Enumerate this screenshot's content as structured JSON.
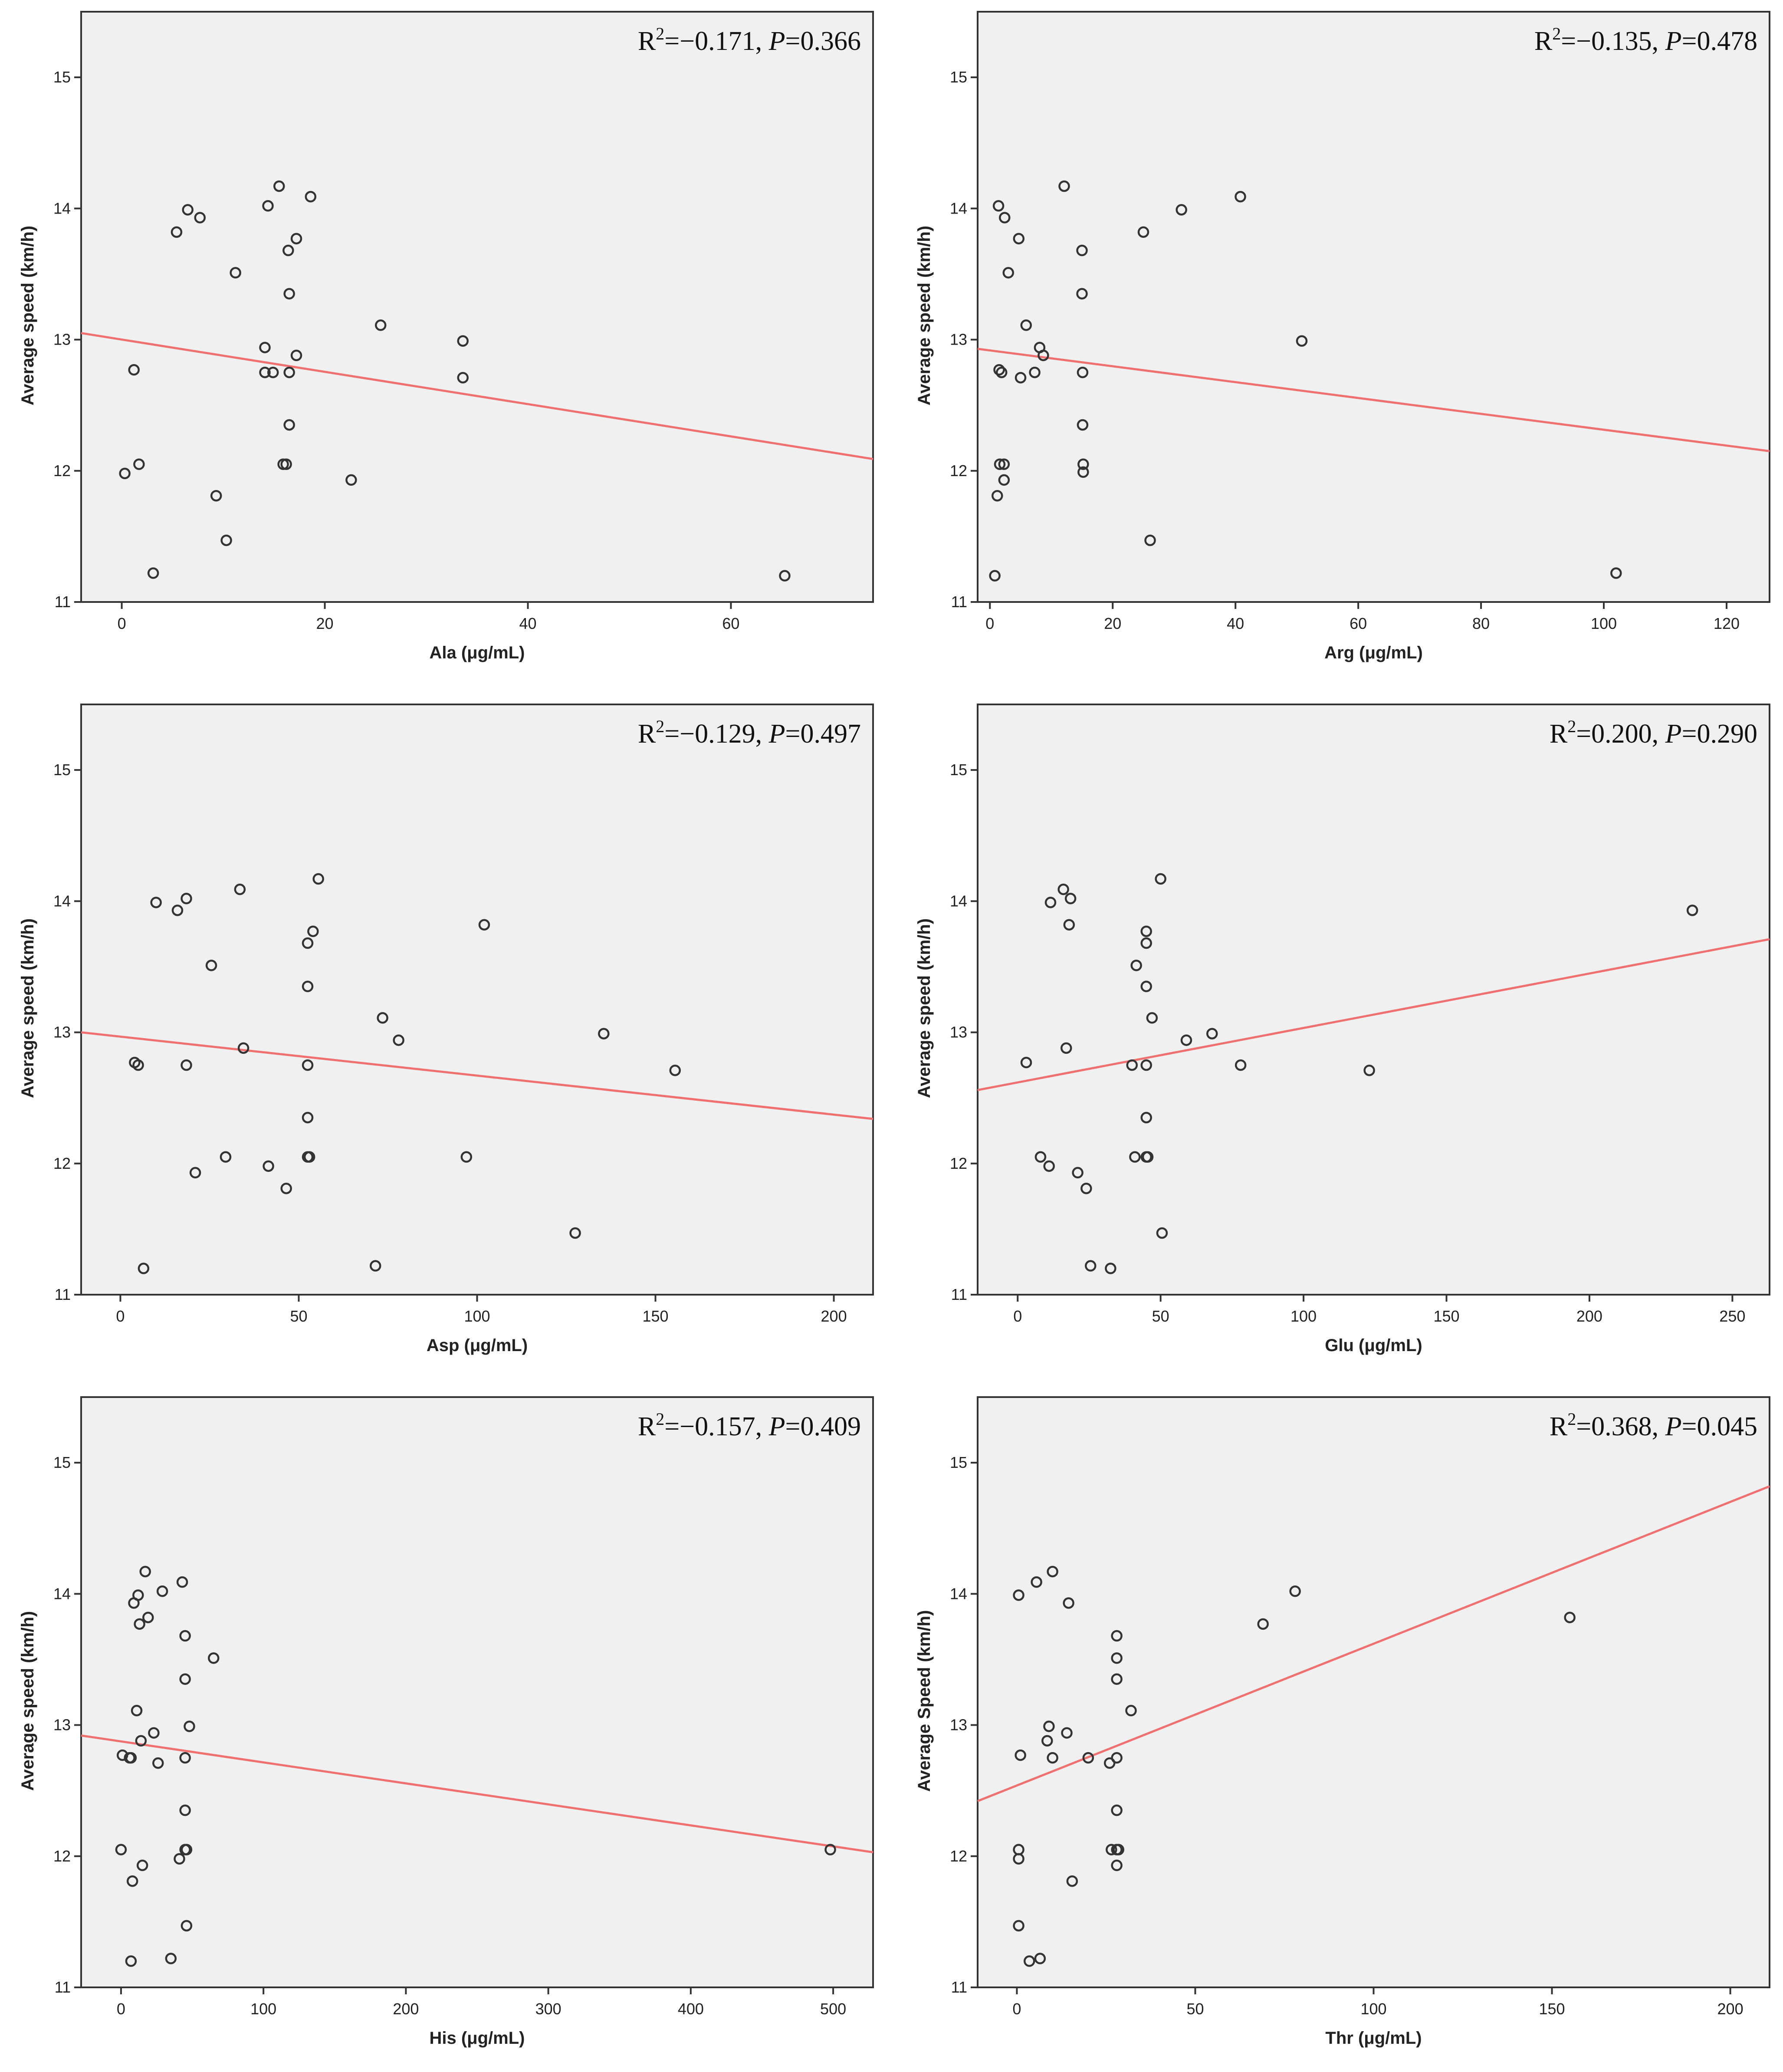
{
  "chart_data": [
    {
      "type": "scatter",
      "xlabel": "Ala (μg/mL)",
      "ylabel": "Average speed (km/h)",
      "annotation": {
        "r2_label": "R",
        "r2_sup": "2",
        "r2_value": "=−0.171, ",
        "p_label": "P",
        "p_value": "=0.366"
      },
      "xlim": [
        -4,
        74
      ],
      "ylim": [
        11,
        15.5
      ],
      "xticks": [
        0,
        20,
        40,
        60
      ],
      "yticks": [
        11,
        12,
        13,
        14,
        15
      ],
      "points": [
        [
          0.3,
          11.98
        ],
        [
          1.2,
          12.77
        ],
        [
          1.7,
          12.05
        ],
        [
          3.1,
          11.22
        ],
        [
          5.4,
          13.82
        ],
        [
          6.5,
          13.99
        ],
        [
          7.7,
          13.93
        ],
        [
          9.3,
          11.81
        ],
        [
          10.3,
          11.47
        ],
        [
          11.2,
          13.51
        ],
        [
          14.1,
          12.94
        ],
        [
          14.1,
          12.75
        ],
        [
          14.4,
          14.02
        ],
        [
          14.9,
          12.75
        ],
        [
          15.5,
          14.17
        ],
        [
          15.9,
          12.05
        ],
        [
          16.2,
          12.05
        ],
        [
          16.4,
          13.68
        ],
        [
          16.5,
          12.35
        ],
        [
          16.5,
          12.75
        ],
        [
          16.5,
          13.35
        ],
        [
          17.2,
          13.77
        ],
        [
          17.2,
          12.88
        ],
        [
          18.6,
          14.09
        ],
        [
          22.6,
          11.93
        ],
        [
          25.5,
          13.11
        ],
        [
          33.6,
          12.99
        ],
        [
          33.6,
          12.71
        ],
        [
          65.3,
          11.2
        ]
      ],
      "fit_line": {
        "x": [
          -4,
          74
        ],
        "y": [
          13.05,
          12.09
        ]
      },
      "colors": {
        "background": "#f0f0f0",
        "fit_line": "#f07070",
        "points": "#333333"
      }
    },
    {
      "type": "scatter",
      "xlabel": "Arg (μg/mL)",
      "ylabel": "Average speed (km/h)",
      "annotation": {
        "r2_label": "R",
        "r2_sup": "2",
        "r2_value": "=−0.135, ",
        "p_label": "P",
        "p_value": "=0.478"
      },
      "xlim": [
        -2,
        127
      ],
      "ylim": [
        11,
        15.5
      ],
      "xticks": [
        0,
        20,
        40,
        60,
        80,
        100,
        120
      ],
      "yticks": [
        11,
        12,
        13,
        14,
        15
      ],
      "points": [
        [
          0.8,
          11.2
        ],
        [
          1.2,
          11.81
        ],
        [
          1.4,
          14.02
        ],
        [
          1.5,
          12.77
        ],
        [
          1.6,
          12.05
        ],
        [
          1.9,
          12.75
        ],
        [
          2.3,
          11.93
        ],
        [
          2.3,
          12.05
        ],
        [
          2.4,
          13.93
        ],
        [
          3.0,
          13.51
        ],
        [
          4.7,
          13.77
        ],
        [
          5.0,
          12.71
        ],
        [
          5.9,
          13.11
        ],
        [
          7.3,
          12.75
        ],
        [
          8.1,
          12.94
        ],
        [
          8.7,
          12.88
        ],
        [
          12.1,
          14.17
        ],
        [
          15.0,
          13.68
        ],
        [
          15.0,
          13.35
        ],
        [
          15.1,
          12.75
        ],
        [
          15.1,
          12.35
        ],
        [
          15.2,
          12.05
        ],
        [
          15.2,
          11.99
        ],
        [
          25.0,
          13.82
        ],
        [
          26.1,
          11.47
        ],
        [
          31.2,
          13.99
        ],
        [
          40.8,
          14.09
        ],
        [
          50.8,
          12.99
        ],
        [
          102.0,
          11.22
        ]
      ],
      "fit_line": {
        "x": [
          -2,
          127
        ],
        "y": [
          12.93,
          12.15
        ]
      },
      "colors": {
        "background": "#f0f0f0",
        "fit_line": "#f07070",
        "points": "#333333"
      }
    },
    {
      "type": "scatter",
      "xlabel": "Asp (μg/mL)",
      "ylabel": "Average speed (km/h)",
      "annotation": {
        "r2_label": "R",
        "r2_sup": "2",
        "r2_value": "=−0.129, ",
        "p_label": "P",
        "p_value": "=0.497"
      },
      "xlim": [
        -11,
        211
      ],
      "ylim": [
        11,
        15.5
      ],
      "xticks": [
        0,
        50,
        100,
        150,
        200
      ],
      "yticks": [
        11,
        12,
        13,
        14,
        15
      ],
      "points": [
        [
          4.0,
          12.77
        ],
        [
          5.0,
          12.75
        ],
        [
          6.5,
          11.2
        ],
        [
          10.0,
          13.99
        ],
        [
          16.0,
          13.93
        ],
        [
          18.5,
          14.02
        ],
        [
          18.5,
          12.75
        ],
        [
          21.0,
          11.93
        ],
        [
          25.5,
          13.51
        ],
        [
          29.5,
          12.05
        ],
        [
          33.5,
          14.09
        ],
        [
          34.5,
          12.88
        ],
        [
          41.5,
          11.98
        ],
        [
          46.5,
          11.81
        ],
        [
          52.5,
          13.68
        ],
        [
          52.5,
          13.35
        ],
        [
          52.5,
          12.75
        ],
        [
          52.5,
          12.35
        ],
        [
          52.5,
          12.05
        ],
        [
          53.0,
          12.05
        ],
        [
          54.0,
          13.77
        ],
        [
          55.5,
          14.17
        ],
        [
          71.5,
          11.22
        ],
        [
          73.5,
          13.11
        ],
        [
          78.0,
          12.94
        ],
        [
          97.0,
          12.05
        ],
        [
          102.0,
          13.82
        ],
        [
          127.5,
          11.47
        ],
        [
          135.5,
          12.99
        ],
        [
          155.5,
          12.71
        ]
      ],
      "fit_line": {
        "x": [
          -11,
          211
        ],
        "y": [
          13.0,
          12.34
        ]
      },
      "colors": {
        "background": "#f0f0f0",
        "fit_line": "#f07070",
        "points": "#333333"
      }
    },
    {
      "type": "scatter",
      "xlabel": "Glu (μg/mL)",
      "ylabel": "Average speed (km/h)",
      "annotation": {
        "r2_label": "R",
        "r2_sup": "2",
        "r2_value": "=0.200, ",
        "p_label": "P",
        "p_value": "=0.290"
      },
      "xlim": [
        -14,
        263
      ],
      "ylim": [
        11,
        15.5
      ],
      "xticks": [
        0,
        50,
        100,
        150,
        200,
        250
      ],
      "yticks": [
        11,
        12,
        13,
        14,
        15
      ],
      "points": [
        [
          3.0,
          12.77
        ],
        [
          8.0,
          12.05
        ],
        [
          11.0,
          11.98
        ],
        [
          11.5,
          13.99
        ],
        [
          16.0,
          14.09
        ],
        [
          17.0,
          12.88
        ],
        [
          18.0,
          13.82
        ],
        [
          18.5,
          14.02
        ],
        [
          21.0,
          11.93
        ],
        [
          24.0,
          11.81
        ],
        [
          25.5,
          11.22
        ],
        [
          32.5,
          11.2
        ],
        [
          40.0,
          12.75
        ],
        [
          41.0,
          12.05
        ],
        [
          41.5,
          13.51
        ],
        [
          45.0,
          13.77
        ],
        [
          45.0,
          13.68
        ],
        [
          45.0,
          13.35
        ],
        [
          45.0,
          12.75
        ],
        [
          45.0,
          12.35
        ],
        [
          45.0,
          12.05
        ],
        [
          45.5,
          12.05
        ],
        [
          47.0,
          13.11
        ],
        [
          50.0,
          14.17
        ],
        [
          50.5,
          11.47
        ],
        [
          59.0,
          12.94
        ],
        [
          68.0,
          12.99
        ],
        [
          78.0,
          12.75
        ],
        [
          123.0,
          12.71
        ],
        [
          236.0,
          13.93
        ]
      ],
      "fit_line": {
        "x": [
          -14,
          263
        ],
        "y": [
          12.56,
          13.71
        ]
      },
      "colors": {
        "background": "#f0f0f0",
        "fit_line": "#f07070",
        "points": "#333333"
      }
    },
    {
      "type": "scatter",
      "xlabel": "His (μg/mL)",
      "ylabel": "Average speed (km/h)",
      "annotation": {
        "r2_label": "R",
        "r2_sup": "2",
        "r2_value": "=−0.157, ",
        "p_label": "P",
        "p_value": "=0.409"
      },
      "xlim": [
        -28,
        528
      ],
      "ylim": [
        11,
        15.5
      ],
      "xticks": [
        0,
        100,
        200,
        300,
        400,
        500
      ],
      "yticks": [
        11,
        12,
        13,
        14,
        15
      ],
      "points": [
        [
          0.0,
          12.05
        ],
        [
          1.0,
          12.77
        ],
        [
          6.0,
          12.75
        ],
        [
          7.0,
          11.2
        ],
        [
          7.0,
          12.75
        ],
        [
          8.0,
          11.81
        ],
        [
          9.0,
          13.93
        ],
        [
          11.0,
          13.11
        ],
        [
          12.0,
          13.99
        ],
        [
          13.0,
          13.77
        ],
        [
          14.0,
          12.88
        ],
        [
          15.0,
          11.93
        ],
        [
          17.0,
          14.17
        ],
        [
          19.0,
          13.82
        ],
        [
          23.0,
          12.94
        ],
        [
          26.0,
          12.71
        ],
        [
          29.0,
          14.02
        ],
        [
          35.0,
          11.22
        ],
        [
          41.0,
          11.98
        ],
        [
          43.0,
          14.09
        ],
        [
          45.0,
          13.68
        ],
        [
          45.0,
          13.35
        ],
        [
          45.0,
          12.75
        ],
        [
          45.0,
          12.35
        ],
        [
          45.0,
          12.05
        ],
        [
          46.0,
          12.05
        ],
        [
          46.0,
          11.47
        ],
        [
          48.0,
          12.99
        ],
        [
          65.0,
          13.51
        ],
        [
          498.0,
          12.05
        ]
      ],
      "fit_line": {
        "x": [
          -28,
          528
        ],
        "y": [
          12.92,
          12.03
        ]
      },
      "colors": {
        "background": "#f0f0f0",
        "fit_line": "#f07070",
        "points": "#333333"
      }
    },
    {
      "type": "scatter",
      "xlabel": "Thr (μg/mL)",
      "ylabel": "Average Speed (km/h)",
      "annotation": {
        "r2_label": "R",
        "r2_sup": "2",
        "r2_value": "=0.368, ",
        "p_label": "P",
        "p_value": "=0.045"
      },
      "xlim": [
        -11,
        211
      ],
      "ylim": [
        11,
        15.5
      ],
      "xticks": [
        0,
        50,
        100,
        150,
        200
      ],
      "yticks": [
        11,
        12,
        13,
        14,
        15
      ],
      "points": [
        [
          0.5,
          11.47
        ],
        [
          0.5,
          11.98
        ],
        [
          0.5,
          12.05
        ],
        [
          0.5,
          13.99
        ],
        [
          1.0,
          12.77
        ],
        [
          3.5,
          11.2
        ],
        [
          5.5,
          14.09
        ],
        [
          6.5,
          11.22
        ],
        [
          8.5,
          12.88
        ],
        [
          9.0,
          12.99
        ],
        [
          10.0,
          12.75
        ],
        [
          10.0,
          14.17
        ],
        [
          14.0,
          12.94
        ],
        [
          14.5,
          13.93
        ],
        [
          15.5,
          11.81
        ],
        [
          20.0,
          12.75
        ],
        [
          26.0,
          12.71
        ],
        [
          26.5,
          12.05
        ],
        [
          28.0,
          13.68
        ],
        [
          28.0,
          13.51
        ],
        [
          28.0,
          13.35
        ],
        [
          28.0,
          12.75
        ],
        [
          28.0,
          12.35
        ],
        [
          28.0,
          12.05
        ],
        [
          28.0,
          11.93
        ],
        [
          28.5,
          12.05
        ],
        [
          32.0,
          13.11
        ],
        [
          69.0,
          13.77
        ],
        [
          78.0,
          14.02
        ],
        [
          155.0,
          13.82
        ]
      ],
      "fit_line": {
        "x": [
          -11,
          211
        ],
        "y": [
          12.42,
          14.82
        ]
      },
      "colors": {
        "background": "#f0f0f0",
        "fit_line": "#f07070",
        "points": "#333333"
      }
    }
  ]
}
